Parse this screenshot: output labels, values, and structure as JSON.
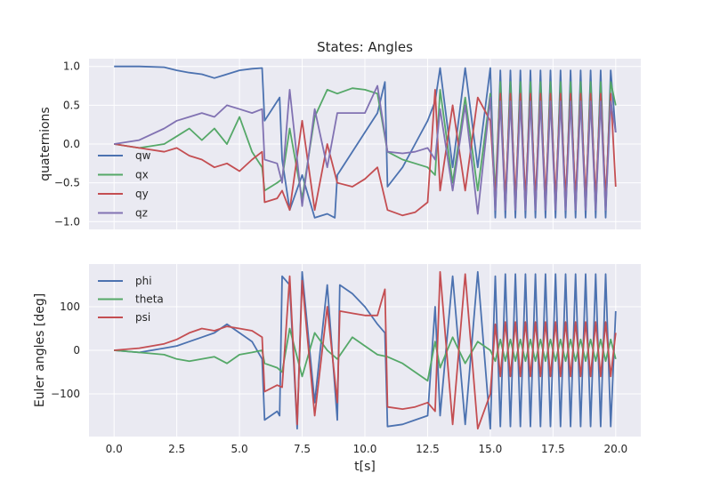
{
  "chart_data": [
    {
      "type": "line",
      "title": "States: Angles",
      "xlabel": "",
      "ylabel": "quaternions",
      "xlim": [
        -1.0,
        21.0
      ],
      "ylim": [
        -1.1,
        1.1
      ],
      "xticks": [
        0.0,
        2.5,
        5.0,
        7.5,
        10.0,
        12.5,
        15.0,
        17.5,
        20.0
      ],
      "xtick_labels_visible": false,
      "yticks": [
        -1.0,
        -0.5,
        0.0,
        0.5,
        1.0
      ],
      "ytick_labels": [
        "−1.0",
        "−0.5",
        "0.0",
        "0.5",
        "1.0"
      ],
      "grid": true,
      "legend_position": "lower-left",
      "series": [
        {
          "name": "qw",
          "color": "#4c72b0",
          "x": [
            0,
            1,
            2,
            2.5,
            3,
            3.5,
            4,
            4.5,
            5,
            5.5,
            5.9,
            6.0,
            6.5,
            6.6,
            6.7,
            7.0,
            7.5,
            8.0,
            8.5,
            8.8,
            8.9,
            9.5,
            10.0,
            10.5,
            10.8,
            10.9,
            11.5,
            12.0,
            12.5,
            12.8,
            13.0,
            13.5,
            14.0,
            14.5,
            15.0,
            15.2,
            15.4,
            15.6,
            15.8,
            16.0,
            16.2,
            16.4,
            16.6,
            16.8,
            17.0,
            17.2,
            17.4,
            17.6,
            17.8,
            18.0,
            18.2,
            18.4,
            18.6,
            18.8,
            19.0,
            19.2,
            19.4,
            19.6,
            19.8,
            20.0
          ],
          "y": [
            1.0,
            1.0,
            0.99,
            0.95,
            0.92,
            0.9,
            0.85,
            0.9,
            0.95,
            0.97,
            0.98,
            0.3,
            0.55,
            0.6,
            -0.2,
            -0.85,
            -0.4,
            -0.95,
            -0.9,
            -0.95,
            -0.4,
            -0.1,
            0.15,
            0.4,
            0.8,
            -0.55,
            -0.3,
            0.0,
            0.3,
            0.55,
            0.98,
            -0.3,
            0.98,
            -0.3,
            0.98,
            -0.95,
            0.95,
            -0.95,
            0.95,
            -0.95,
            0.95,
            -0.95,
            0.95,
            -0.95,
            0.95,
            -0.95,
            0.95,
            -0.95,
            0.95,
            -0.95,
            0.95,
            -0.95,
            0.95,
            -0.95,
            0.95,
            -0.95,
            0.95,
            -0.95,
            0.95,
            0.15
          ]
        },
        {
          "name": "qx",
          "color": "#55a868",
          "x": [
            0,
            1,
            2,
            2.5,
            3,
            3.5,
            4,
            4.5,
            5,
            5.5,
            5.9,
            6.0,
            6.5,
            6.7,
            7.0,
            7.5,
            8.0,
            8.5,
            8.9,
            9.5,
            10.0,
            10.5,
            10.9,
            11.5,
            12.0,
            12.5,
            12.8,
            13.0,
            13.5,
            14.0,
            14.5,
            15.0,
            15.2,
            15.4,
            15.6,
            15.8,
            16.0,
            16.2,
            16.4,
            16.6,
            16.8,
            17.0,
            17.2,
            17.4,
            17.6,
            17.8,
            18.0,
            18.2,
            18.4,
            18.6,
            18.8,
            19.0,
            19.2,
            19.4,
            19.6,
            19.8,
            20.0
          ],
          "y": [
            0.0,
            -0.05,
            0.0,
            0.1,
            0.2,
            0.05,
            0.2,
            0.0,
            0.35,
            -0.1,
            -0.3,
            -0.6,
            -0.5,
            -0.45,
            0.2,
            -0.7,
            0.35,
            0.7,
            0.65,
            0.72,
            0.7,
            0.65,
            -0.1,
            -0.2,
            -0.25,
            -0.3,
            -0.4,
            0.7,
            -0.5,
            0.6,
            -0.6,
            0.65,
            -0.65,
            0.8,
            -0.8,
            0.8,
            -0.8,
            0.8,
            -0.8,
            0.8,
            -0.8,
            0.8,
            -0.8,
            0.8,
            -0.8,
            0.8,
            -0.8,
            0.8,
            -0.8,
            0.8,
            -0.8,
            0.8,
            -0.8,
            0.8,
            -0.8,
            0.8,
            0.5
          ]
        },
        {
          "name": "qy",
          "color": "#c44e52",
          "x": [
            0,
            1,
            2,
            2.5,
            3,
            3.5,
            4,
            4.5,
            5,
            5.5,
            5.9,
            6.0,
            6.5,
            6.7,
            7.0,
            7.5,
            8.0,
            8.5,
            8.9,
            9.5,
            10.0,
            10.5,
            10.9,
            11.5,
            12.0,
            12.5,
            12.8,
            13.0,
            13.5,
            14.0,
            14.5,
            15.0,
            15.2,
            15.4,
            15.6,
            15.8,
            16.0,
            16.2,
            16.4,
            16.6,
            16.8,
            17.0,
            17.2,
            17.4,
            17.6,
            17.8,
            18.0,
            18.2,
            18.4,
            18.6,
            18.8,
            19.0,
            19.2,
            19.4,
            19.6,
            19.8,
            20.0
          ],
          "y": [
            0.0,
            -0.05,
            -0.1,
            -0.05,
            -0.15,
            -0.2,
            -0.3,
            -0.25,
            -0.35,
            -0.2,
            -0.1,
            -0.75,
            -0.7,
            -0.6,
            -0.85,
            0.3,
            -0.85,
            0.0,
            -0.5,
            -0.55,
            -0.45,
            -0.3,
            -0.85,
            -0.92,
            -0.88,
            -0.75,
            0.7,
            -0.6,
            0.5,
            -0.6,
            0.6,
            0.3,
            -0.7,
            0.65,
            -0.7,
            0.65,
            -0.7,
            0.65,
            -0.7,
            0.65,
            -0.7,
            0.65,
            -0.7,
            0.65,
            -0.7,
            0.65,
            -0.7,
            0.65,
            -0.7,
            0.65,
            -0.7,
            0.65,
            -0.7,
            0.65,
            -0.7,
            0.65,
            -0.55
          ]
        },
        {
          "name": "qz",
          "color": "#8172b2",
          "x": [
            0,
            1,
            2,
            2.5,
            3,
            3.5,
            4,
            4.5,
            5,
            5.5,
            5.9,
            6.0,
            6.5,
            6.7,
            7.0,
            7.5,
            8.0,
            8.5,
            8.9,
            9.5,
            10.0,
            10.5,
            10.9,
            11.5,
            12.0,
            12.5,
            12.8,
            13.0,
            13.5,
            14.0,
            14.5,
            15.0,
            15.2,
            15.4,
            15.6,
            15.8,
            16.0,
            16.2,
            16.4,
            16.6,
            16.8,
            17.0,
            17.2,
            17.4,
            17.6,
            17.8,
            18.0,
            18.2,
            18.4,
            18.6,
            18.8,
            19.0,
            19.2,
            19.4,
            19.6,
            19.8,
            20.0
          ],
          "y": [
            0.0,
            0.05,
            0.2,
            0.3,
            0.35,
            0.4,
            0.35,
            0.5,
            0.45,
            0.4,
            0.45,
            -0.2,
            -0.25,
            -0.5,
            0.7,
            -0.8,
            0.45,
            -0.3,
            0.4,
            0.4,
            0.4,
            0.75,
            -0.1,
            -0.12,
            -0.1,
            -0.05,
            -0.2,
            0.45,
            -0.6,
            0.5,
            -0.9,
            0.6,
            -0.85,
            0.55,
            -0.85,
            0.55,
            -0.85,
            0.55,
            -0.85,
            0.55,
            -0.85,
            0.55,
            -0.85,
            0.55,
            -0.85,
            0.55,
            -0.85,
            0.55,
            -0.85,
            0.55,
            -0.85,
            0.55,
            -0.85,
            0.55,
            -0.85,
            0.55,
            0.15
          ]
        }
      ]
    },
    {
      "type": "line",
      "title": "",
      "xlabel": "t[s]",
      "ylabel": "Euler angles [deg]",
      "xlim": [
        -1.0,
        21.0
      ],
      "ylim": [
        -198,
        198
      ],
      "xticks": [
        0.0,
        2.5,
        5.0,
        7.5,
        10.0,
        12.5,
        15.0,
        17.5,
        20.0
      ],
      "xtick_labels": [
        "0.0",
        "2.5",
        "5.0",
        "7.5",
        "10.0",
        "12.5",
        "15.0",
        "17.5",
        "20.0"
      ],
      "yticks": [
        -100,
        0,
        100
      ],
      "ytick_labels": [
        "−100",
        "0",
        "100"
      ],
      "grid": true,
      "legend_position": "upper-left",
      "series": [
        {
          "name": "phi",
          "color": "#4c72b0",
          "x": [
            0,
            1,
            2,
            2.5,
            3,
            3.5,
            4,
            4.5,
            5,
            5.5,
            5.9,
            6.0,
            6.5,
            6.6,
            6.7,
            7.0,
            7.3,
            7.5,
            8.0,
            8.5,
            8.9,
            9.0,
            9.5,
            10.0,
            10.5,
            10.8,
            10.9,
            11.5,
            12.0,
            12.5,
            12.8,
            13.0,
            13.5,
            14.0,
            14.5,
            15.0,
            15.2,
            15.4,
            15.6,
            15.8,
            16.0,
            16.2,
            16.4,
            16.6,
            16.8,
            17.0,
            17.2,
            17.4,
            17.6,
            17.8,
            18.0,
            18.2,
            18.4,
            18.6,
            18.8,
            19.0,
            19.2,
            19.4,
            19.6,
            19.8,
            20.0
          ],
          "y": [
            0,
            -5,
            5,
            10,
            20,
            30,
            40,
            60,
            40,
            20,
            -20,
            -160,
            -140,
            -150,
            170,
            150,
            -180,
            180,
            -120,
            150,
            -160,
            150,
            130,
            100,
            60,
            40,
            -175,
            -170,
            -160,
            -150,
            100,
            -150,
            170,
            -170,
            180,
            -180,
            170,
            -175,
            175,
            -175,
            175,
            -175,
            175,
            -175,
            175,
            -175,
            175,
            -175,
            175,
            -175,
            175,
            -175,
            175,
            -175,
            175,
            -175,
            175,
            -175,
            175,
            -175,
            90
          ]
        },
        {
          "name": "theta",
          "color": "#55a868",
          "x": [
            0,
            1,
            2,
            2.5,
            3,
            3.5,
            4,
            4.5,
            5,
            5.5,
            5.9,
            6.0,
            6.5,
            6.7,
            7.0,
            7.5,
            8.0,
            8.5,
            8.9,
            9.5,
            10.0,
            10.5,
            10.9,
            11.5,
            12.0,
            12.5,
            12.8,
            13.0,
            13.5,
            14.0,
            14.5,
            15.0,
            15.2,
            15.4,
            15.6,
            15.8,
            16.0,
            16.2,
            16.4,
            16.6,
            16.8,
            17.0,
            17.2,
            17.4,
            17.6,
            17.8,
            18.0,
            18.2,
            18.4,
            18.6,
            18.8,
            19.0,
            19.2,
            19.4,
            19.6,
            19.8,
            20.0
          ],
          "y": [
            0,
            -5,
            -10,
            -20,
            -25,
            -20,
            -15,
            -30,
            -10,
            -5,
            0,
            -30,
            -40,
            -50,
            50,
            -60,
            40,
            0,
            -20,
            30,
            10,
            -10,
            -15,
            -30,
            -50,
            -70,
            20,
            -40,
            30,
            -30,
            20,
            0,
            -25,
            25,
            -25,
            25,
            -25,
            25,
            -25,
            25,
            -25,
            25,
            -25,
            25,
            -25,
            25,
            -25,
            25,
            -25,
            25,
            -25,
            25,
            -25,
            25,
            -25,
            25,
            -20
          ]
        },
        {
          "name": "psi",
          "color": "#c44e52",
          "x": [
            0,
            1,
            2,
            2.5,
            3,
            3.5,
            4,
            4.5,
            5,
            5.5,
            5.9,
            6.0,
            6.5,
            6.7,
            7.0,
            7.3,
            7.5,
            8.0,
            8.5,
            8.9,
            9.0,
            9.5,
            10.0,
            10.5,
            10.8,
            10.9,
            11.5,
            12.0,
            12.5,
            12.8,
            13.0,
            13.5,
            14.0,
            14.5,
            15.0,
            15.2,
            15.4,
            15.6,
            15.8,
            16.0,
            16.2,
            16.4,
            16.6,
            16.8,
            17.0,
            17.2,
            17.4,
            17.6,
            17.8,
            18.0,
            18.2,
            18.4,
            18.6,
            18.8,
            19.0,
            19.2,
            19.4,
            19.6,
            19.8,
            20.0
          ],
          "y": [
            0,
            5,
            15,
            25,
            40,
            50,
            45,
            55,
            50,
            45,
            30,
            -95,
            -80,
            -85,
            170,
            -170,
            160,
            -150,
            100,
            -120,
            90,
            85,
            80,
            80,
            140,
            -130,
            -135,
            -130,
            -120,
            -140,
            180,
            -170,
            175,
            -180,
            -100,
            60,
            -60,
            65,
            -60,
            65,
            -60,
            65,
            -60,
            65,
            -60,
            65,
            -60,
            65,
            -60,
            65,
            -60,
            65,
            -60,
            65,
            -60,
            65,
            -60,
            65,
            -60,
            40
          ]
        }
      ]
    }
  ]
}
